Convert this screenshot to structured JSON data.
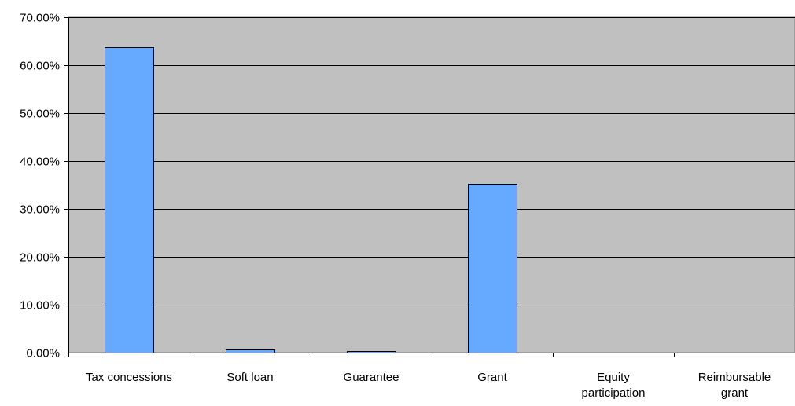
{
  "chart_data": {
    "type": "bar",
    "categories": [
      [
        "Tax concessions"
      ],
      [
        "Soft loan"
      ],
      [
        "Guarantee"
      ],
      [
        "Grant"
      ],
      [
        "Equity",
        "participation"
      ],
      [
        "Reimbursable",
        "grant"
      ]
    ],
    "values": [
      63.8,
      0.6,
      0.4,
      35.2,
      0,
      0
    ],
    "yticks": [
      "0.00%",
      "10.00%",
      "20.00%",
      "30.00%",
      "40.00%",
      "50.00%",
      "60.00%",
      "70.00%"
    ],
    "ylim": [
      0,
      70
    ],
    "grid": true,
    "colors": {
      "bar": "#66aaff",
      "plot_bg": "#c0c0c0",
      "grid": "#000000"
    }
  }
}
